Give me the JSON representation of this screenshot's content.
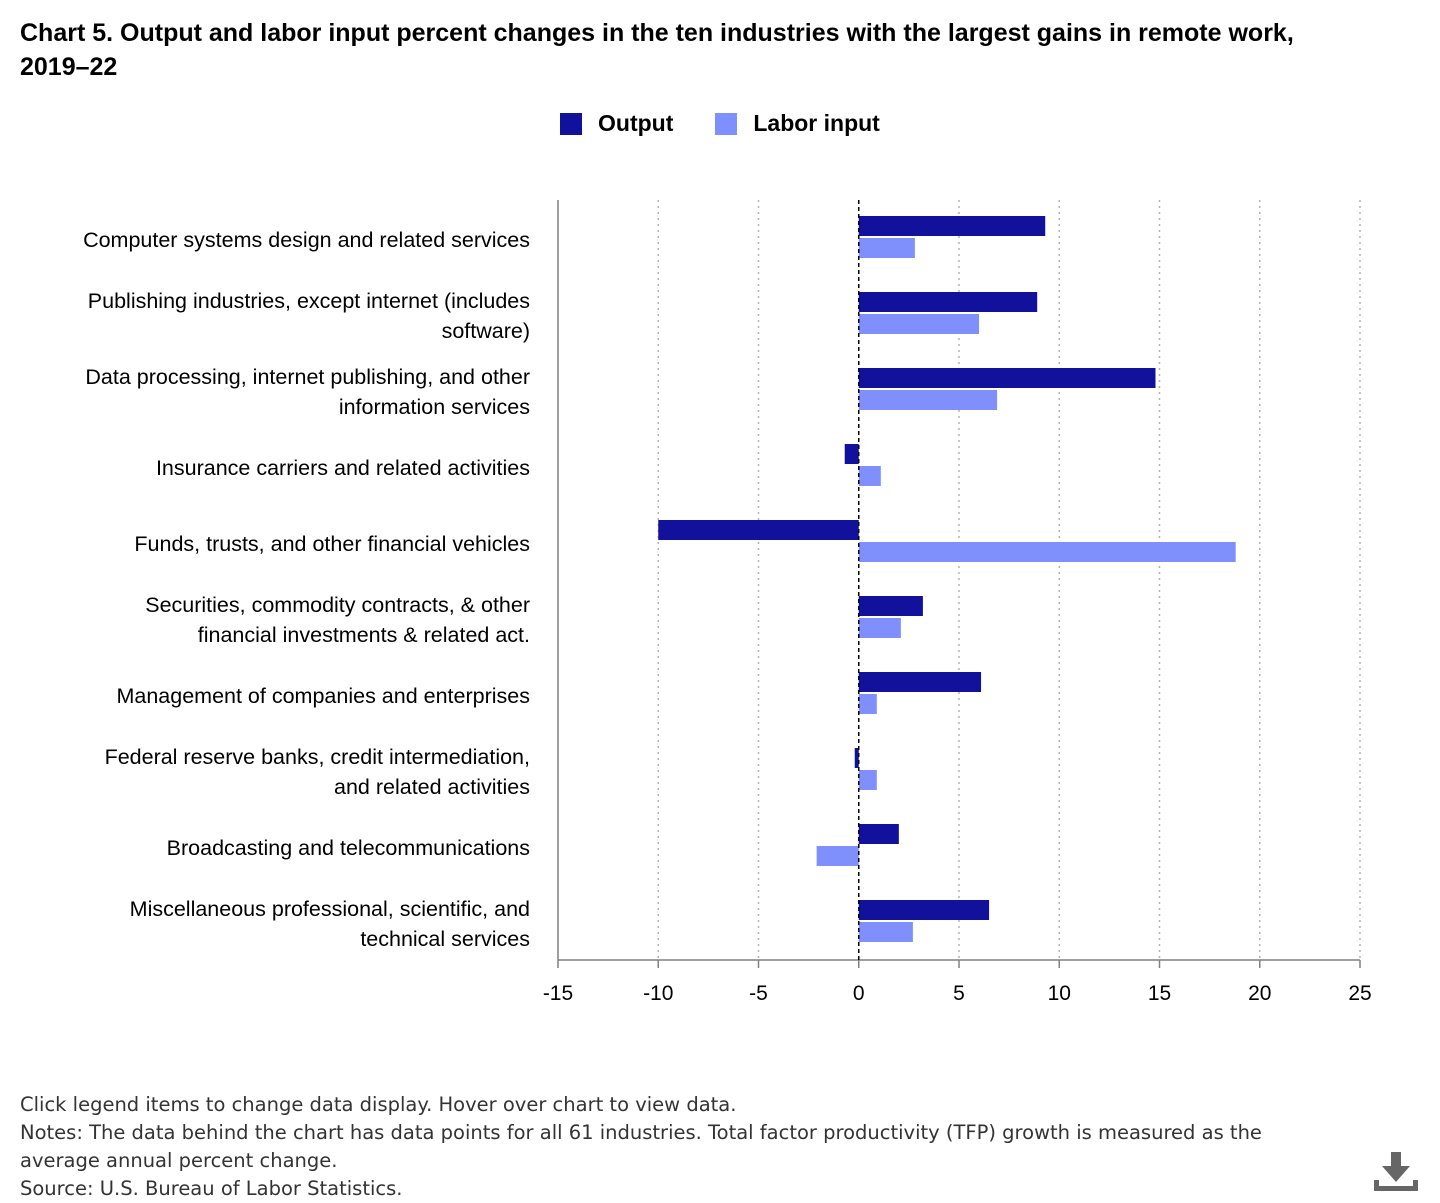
{
  "title": "Chart 5. Output and labor input percent changes in the ten industries with the largest gains in remote work, 2019–22",
  "legend": {
    "output_label": "Output",
    "labor_label": "Labor input"
  },
  "colors": {
    "output": "#11119b",
    "labor": "#7f8ffb",
    "grid": "#b3b3b3",
    "axis": "#808080",
    "zero_line": "#000000"
  },
  "footer": {
    "instructions": "Click legend items to change data display. Hover over chart to view data.",
    "notes": "Notes: The data behind the chart has data points for all 61 industries. Total factor productivity (TFP) growth is measured as the average annual percent change.",
    "source": "Source: U.S. Bureau of Labor Statistics."
  },
  "download_icon": "download-icon",
  "chart_data": {
    "type": "bar",
    "orientation": "horizontal",
    "categories": [
      [
        "Computer systems design and related services"
      ],
      [
        "Publishing industries, except internet (includes",
        "software)"
      ],
      [
        "Data processing, internet publishing, and other",
        "information services"
      ],
      [
        "Insurance carriers and related activities"
      ],
      [
        "Funds, trusts, and other financial vehicles"
      ],
      [
        "Securities, commodity contracts, & other",
        "financial investments & related act."
      ],
      [
        "Management of companies and enterprises"
      ],
      [
        "Federal reserve banks, credit intermediation,",
        "and related activities"
      ],
      [
        "Broadcasting and telecommunications"
      ],
      [
        "Miscellaneous professional, scientific, and",
        "technical services"
      ]
    ],
    "series": [
      {
        "name": "Output",
        "values": [
          9.3,
          8.9,
          14.8,
          -0.7,
          -10.0,
          3.2,
          6.1,
          -0.2,
          2.0,
          6.5
        ]
      },
      {
        "name": "Labor input",
        "values": [
          2.8,
          6.0,
          6.9,
          1.1,
          18.8,
          2.1,
          0.9,
          0.9,
          -2.1,
          2.7
        ]
      }
    ],
    "xlim": [
      -15,
      25
    ],
    "xticks": [
      -15,
      -10,
      -5,
      0,
      5,
      10,
      15,
      20,
      25
    ],
    "grid": true,
    "legend_position": "top-center"
  }
}
